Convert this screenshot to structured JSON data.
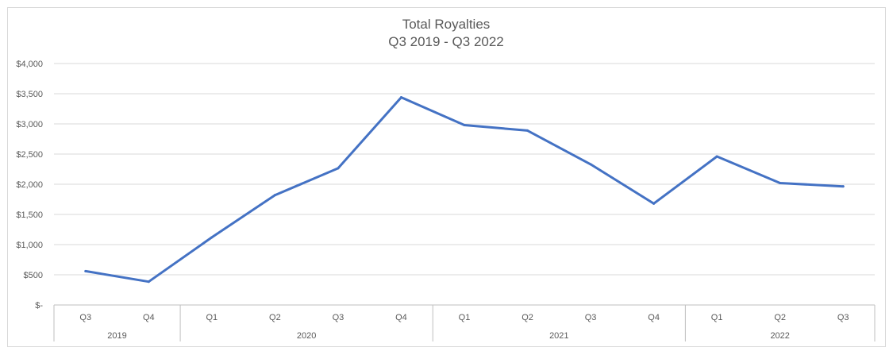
{
  "chart_data": {
    "type": "line",
    "title": "Total Royalties",
    "subtitle": "Q3 2019 - Q3 2022",
    "xlabel": "",
    "ylabel": "",
    "ylim": [
      0,
      4000
    ],
    "yticks": [
      0,
      500,
      1000,
      1500,
      2000,
      2500,
      3000,
      3500,
      4000
    ],
    "ytick_labels": [
      "$-",
      "$500",
      "$1,000",
      "$1,500",
      "$2,000",
      "$2,500",
      "$3,000",
      "$3,500",
      "$4,000"
    ],
    "categories": [
      "Q3",
      "Q4",
      "Q1",
      "Q2",
      "Q3",
      "Q4",
      "Q1",
      "Q2",
      "Q3",
      "Q4",
      "Q1",
      "Q2",
      "Q3"
    ],
    "year_groups": [
      {
        "label": "2019",
        "count": 2
      },
      {
        "label": "2020",
        "count": 4
      },
      {
        "label": "2021",
        "count": 4
      },
      {
        "label": "2022",
        "count": 3
      }
    ],
    "series": [
      {
        "values": [
          560,
          385,
          1120,
          1820,
          2265,
          3440,
          2980,
          2890,
          2330,
          1680,
          2460,
          2020,
          1965
        ],
        "color": "#4472c4"
      }
    ],
    "grid": true,
    "legend": "none"
  }
}
